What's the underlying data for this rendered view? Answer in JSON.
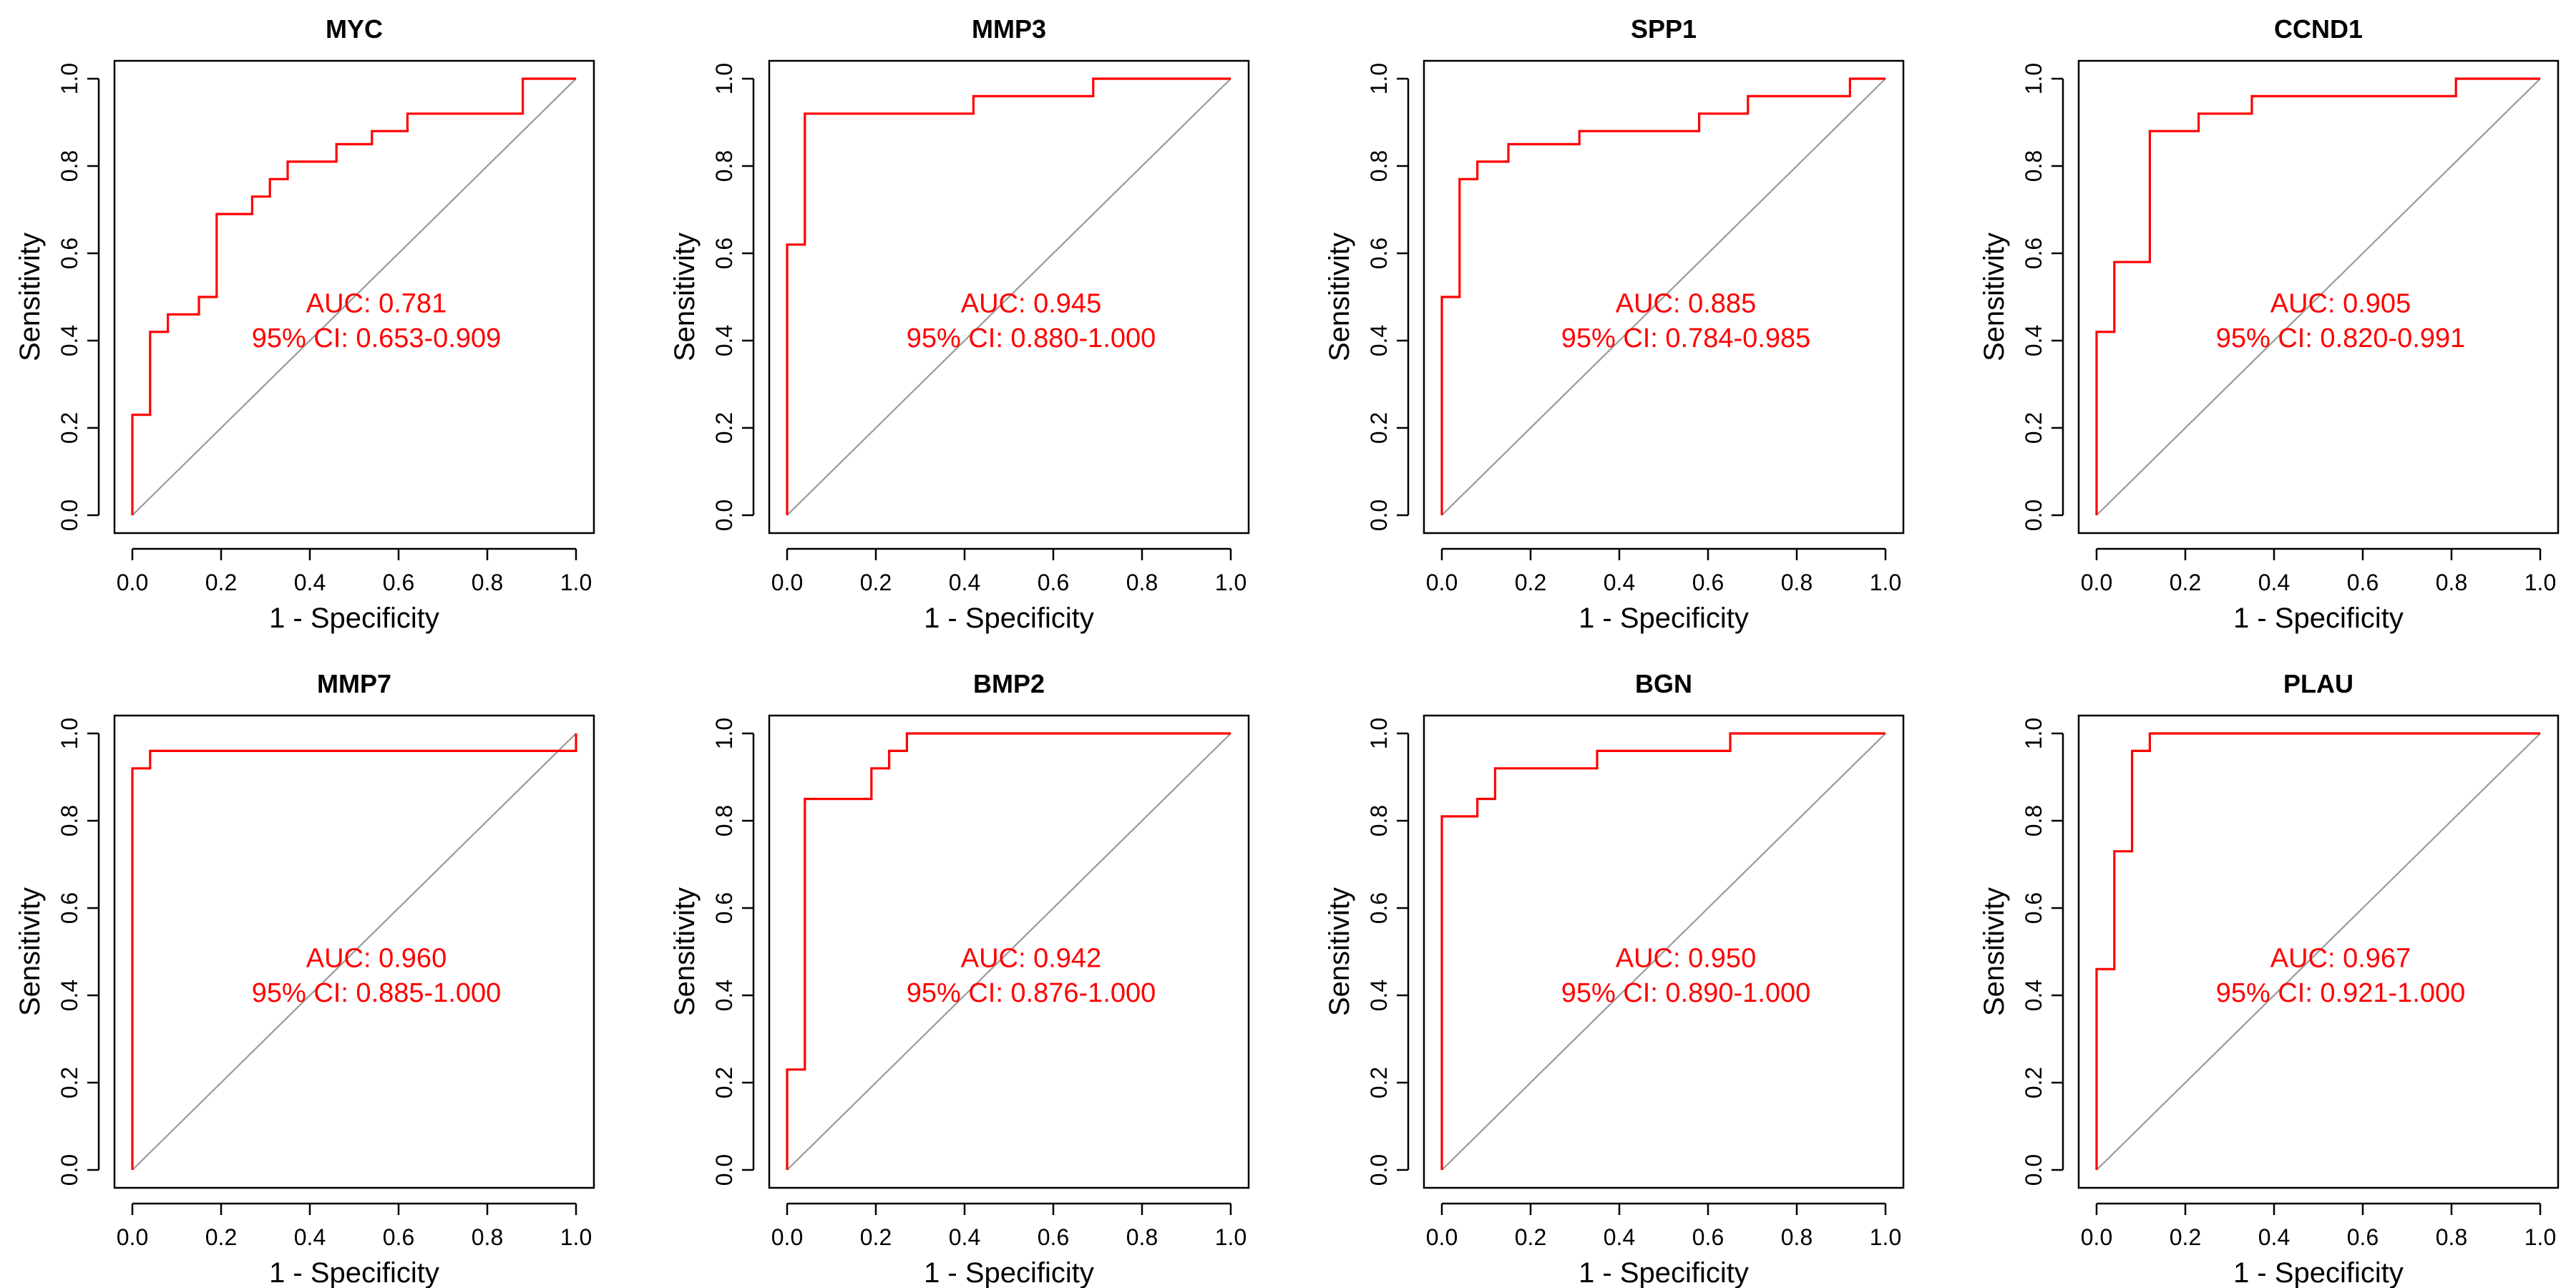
{
  "figure": {
    "xlabel": "1 - Specificity",
    "ylabel": "Sensitivity",
    "colors": {
      "roc": "#ff0000",
      "diagonal": "#9a9a9a",
      "axes": "#000000",
      "background": "#ffffff"
    }
  },
  "chart_data": [
    {
      "type": "line",
      "title": "MYC",
      "xlabel": "1 - Specificity",
      "ylabel": "Sensitivity",
      "xlim": [
        0,
        1
      ],
      "ylim": [
        0,
        1
      ],
      "xticks": [
        "0.0",
        "0.2",
        "0.4",
        "0.6",
        "0.8",
        "1.0"
      ],
      "yticks": [
        "0.0",
        "0.2",
        "0.4",
        "0.6",
        "0.8",
        "1.0"
      ],
      "auc_label": "AUC: 0.781",
      "ci_label": "95% CI: 0.653-0.909",
      "series": [
        {
          "x": [
            0,
            0,
            0.04,
            0.04,
            0.08,
            0.08,
            0.15,
            0.15,
            0.19,
            0.19,
            0.27,
            0.27,
            0.31,
            0.31,
            0.35,
            0.35,
            0.46,
            0.46,
            0.54,
            0.54,
            0.62,
            0.62,
            0.88,
            0.88,
            1.0
          ],
          "y": [
            0,
            0.23,
            0.23,
            0.42,
            0.42,
            0.46,
            0.46,
            0.5,
            0.5,
            0.69,
            0.69,
            0.73,
            0.73,
            0.77,
            0.77,
            0.81,
            0.81,
            0.85,
            0.85,
            0.88,
            0.88,
            0.92,
            0.92,
            1.0,
            1.0
          ]
        }
      ]
    },
    {
      "type": "line",
      "title": "MMP3",
      "xlabel": "1 - Specificity",
      "ylabel": "Sensitivity",
      "xlim": [
        0,
        1
      ],
      "ylim": [
        0,
        1
      ],
      "xticks": [
        "0.0",
        "0.2",
        "0.4",
        "0.6",
        "0.8",
        "1.0"
      ],
      "yticks": [
        "0.0",
        "0.2",
        "0.4",
        "0.6",
        "0.8",
        "1.0"
      ],
      "auc_label": "AUC: 0.945",
      "ci_label": "95% CI: 0.880-1.000",
      "series": [
        {
          "x": [
            0,
            0,
            0.04,
            0.04,
            0.42,
            0.42,
            0.69,
            0.69,
            1.0
          ],
          "y": [
            0,
            0.62,
            0.62,
            0.92,
            0.92,
            0.96,
            0.96,
            1.0,
            1.0
          ]
        }
      ]
    },
    {
      "type": "line",
      "title": "SPP1",
      "xlabel": "1 - Specificity",
      "ylabel": "Sensitivity",
      "xlim": [
        0,
        1
      ],
      "ylim": [
        0,
        1
      ],
      "xticks": [
        "0.0",
        "0.2",
        "0.4",
        "0.6",
        "0.8",
        "1.0"
      ],
      "yticks": [
        "0.0",
        "0.2",
        "0.4",
        "0.6",
        "0.8",
        "1.0"
      ],
      "auc_label": "AUC: 0.885",
      "ci_label": "95% CI: 0.784-0.985",
      "series": [
        {
          "x": [
            0,
            0,
            0.04,
            0.04,
            0.08,
            0.08,
            0.15,
            0.15,
            0.31,
            0.31,
            0.58,
            0.58,
            0.69,
            0.69,
            0.92,
            0.92,
            1.0
          ],
          "y": [
            0,
            0.5,
            0.5,
            0.77,
            0.77,
            0.81,
            0.81,
            0.85,
            0.85,
            0.88,
            0.88,
            0.92,
            0.92,
            0.96,
            0.96,
            1.0,
            1.0
          ]
        }
      ]
    },
    {
      "type": "line",
      "title": "CCND1",
      "xlabel": "1 - Specificity",
      "ylabel": "Sensitivity",
      "xlim": [
        0,
        1
      ],
      "ylim": [
        0,
        1
      ],
      "xticks": [
        "0.0",
        "0.2",
        "0.4",
        "0.6",
        "0.8",
        "1.0"
      ],
      "yticks": [
        "0.0",
        "0.2",
        "0.4",
        "0.6",
        "0.8",
        "1.0"
      ],
      "auc_label": "AUC: 0.905",
      "ci_label": "95% CI: 0.820-0.991",
      "series": [
        {
          "x": [
            0,
            0,
            0.04,
            0.04,
            0.12,
            0.12,
            0.23,
            0.23,
            0.35,
            0.35,
            0.81,
            0.81,
            1.0
          ],
          "y": [
            0,
            0.42,
            0.42,
            0.58,
            0.58,
            0.88,
            0.88,
            0.92,
            0.92,
            0.96,
            0.96,
            1.0,
            1.0
          ]
        }
      ]
    },
    {
      "type": "line",
      "title": "MMP7",
      "xlabel": "1 - Specificity",
      "ylabel": "Sensitivity",
      "xlim": [
        0,
        1
      ],
      "ylim": [
        0,
        1
      ],
      "xticks": [
        "0.0",
        "0.2",
        "0.4",
        "0.6",
        "0.8",
        "1.0"
      ],
      "yticks": [
        "0.0",
        "0.2",
        "0.4",
        "0.6",
        "0.8",
        "1.0"
      ],
      "auc_label": "AUC: 0.960",
      "ci_label": "95% CI: 0.885-1.000",
      "series": [
        {
          "x": [
            0,
            0,
            0.04,
            0.04,
            1.0,
            1.0
          ],
          "y": [
            0,
            0.92,
            0.92,
            0.96,
            0.96,
            1.0
          ]
        }
      ]
    },
    {
      "type": "line",
      "title": "BMP2",
      "xlabel": "1 - Specificity",
      "ylabel": "Sensitivity",
      "xlim": [
        0,
        1
      ],
      "ylim": [
        0,
        1
      ],
      "xticks": [
        "0.0",
        "0.2",
        "0.4",
        "0.6",
        "0.8",
        "1.0"
      ],
      "yticks": [
        "0.0",
        "0.2",
        "0.4",
        "0.6",
        "0.8",
        "1.0"
      ],
      "auc_label": "AUC: 0.942",
      "ci_label": "95% CI: 0.876-1.000",
      "series": [
        {
          "x": [
            0,
            0,
            0.04,
            0.04,
            0.19,
            0.19,
            0.23,
            0.23,
            0.27,
            0.27,
            1.0
          ],
          "y": [
            0,
            0.23,
            0.23,
            0.85,
            0.85,
            0.92,
            0.92,
            0.96,
            0.96,
            1.0,
            1.0
          ]
        }
      ]
    },
    {
      "type": "line",
      "title": "BGN",
      "xlabel": "1 - Specificity",
      "ylabel": "Sensitivity",
      "xlim": [
        0,
        1
      ],
      "ylim": [
        0,
        1
      ],
      "xticks": [
        "0.0",
        "0.2",
        "0.4",
        "0.6",
        "0.8",
        "1.0"
      ],
      "yticks": [
        "0.0",
        "0.2",
        "0.4",
        "0.6",
        "0.8",
        "1.0"
      ],
      "auc_label": "AUC: 0.950",
      "ci_label": "95% CI: 0.890-1.000",
      "series": [
        {
          "x": [
            0,
            0,
            0.08,
            0.08,
            0.12,
            0.12,
            0.35,
            0.35,
            0.65,
            0.65,
            1.0
          ],
          "y": [
            0,
            0.81,
            0.81,
            0.85,
            0.85,
            0.92,
            0.92,
            0.96,
            0.96,
            1.0,
            1.0
          ]
        }
      ]
    },
    {
      "type": "line",
      "title": "PLAU",
      "xlabel": "1 - Specificity",
      "ylabel": "Sensitivity",
      "xlim": [
        0,
        1
      ],
      "ylim": [
        0,
        1
      ],
      "xticks": [
        "0.0",
        "0.2",
        "0.4",
        "0.6",
        "0.8",
        "1.0"
      ],
      "yticks": [
        "0.0",
        "0.2",
        "0.4",
        "0.6",
        "0.8",
        "1.0"
      ],
      "auc_label": "AUC: 0.967",
      "ci_label": "95% CI: 0.921-1.000",
      "series": [
        {
          "x": [
            0,
            0,
            0.04,
            0.04,
            0.08,
            0.08,
            0.12,
            0.12,
            1.0
          ],
          "y": [
            0,
            0.46,
            0.46,
            0.73,
            0.73,
            0.96,
            0.96,
            1.0,
            1.0
          ]
        }
      ]
    }
  ]
}
